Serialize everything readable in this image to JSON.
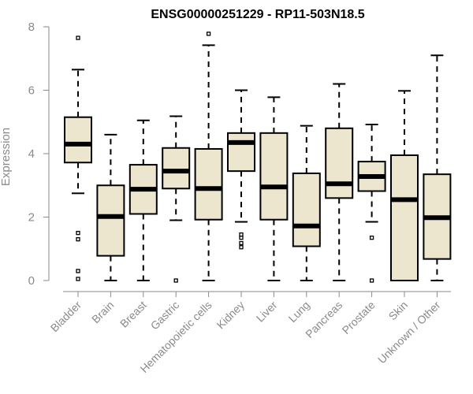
{
  "chart_data": {
    "type": "boxplot",
    "title": "ENSG00000251229 - RP11-503N18.5",
    "xlabel": "",
    "ylabel": "Expression",
    "ylim": [
      0,
      8
    ],
    "yticks": [
      0,
      2,
      4,
      6,
      8
    ],
    "grid": false,
    "categories": [
      "Bladder",
      "Brain",
      "Breast",
      "Gastric",
      "Hematopoietic cells",
      "Kidney",
      "Liver",
      "Lung",
      "Pancreas",
      "Prostate",
      "Skin",
      "Unknown / Other"
    ],
    "boxes": [
      {
        "name": "Bladder",
        "min": 2.75,
        "q1": 3.72,
        "median": 4.3,
        "q3": 5.15,
        "max": 6.65,
        "outliers": [
          7.65,
          1.5,
          1.3,
          0.3,
          0.05
        ]
      },
      {
        "name": "Brain",
        "min": 0.0,
        "q1": 0.78,
        "median": 2.02,
        "q3": 3.0,
        "max": 4.6,
        "outliers": []
      },
      {
        "name": "Breast",
        "min": 0.0,
        "q1": 2.1,
        "median": 2.88,
        "q3": 3.65,
        "max": 5.05,
        "outliers": []
      },
      {
        "name": "Gastric",
        "min": 1.9,
        "q1": 2.9,
        "median": 3.45,
        "q3": 4.18,
        "max": 5.18,
        "outliers": [
          0.0
        ]
      },
      {
        "name": "Hematopoietic cells",
        "min": 0.0,
        "q1": 1.92,
        "median": 2.9,
        "q3": 4.15,
        "max": 7.42,
        "outliers": [
          7.78
        ]
      },
      {
        "name": "Kidney",
        "min": 1.85,
        "q1": 3.45,
        "median": 4.35,
        "q3": 4.65,
        "max": 6.0,
        "outliers": [
          1.45,
          1.35,
          1.18,
          1.05
        ]
      },
      {
        "name": "Liver",
        "min": 0.0,
        "q1": 1.92,
        "median": 2.95,
        "q3": 4.65,
        "max": 5.78,
        "outliers": []
      },
      {
        "name": "Lung",
        "min": 0.0,
        "q1": 1.08,
        "median": 1.72,
        "q3": 3.38,
        "max": 4.88,
        "outliers": []
      },
      {
        "name": "Pancreas",
        "min": 0.0,
        "q1": 2.6,
        "median": 3.05,
        "q3": 4.8,
        "max": 6.2,
        "outliers": []
      },
      {
        "name": "Prostate",
        "min": 1.85,
        "q1": 2.82,
        "median": 3.28,
        "q3": 3.75,
        "max": 4.92,
        "outliers": [
          1.35,
          0.0
        ]
      },
      {
        "name": "Skin",
        "min": 0.0,
        "q1": 0.0,
        "median": 2.55,
        "q3": 3.95,
        "max": 5.98,
        "outliers": []
      },
      {
        "name": "Unknown / Other",
        "min": 0.0,
        "q1": 0.68,
        "median": 1.98,
        "q3": 3.35,
        "max": 7.1,
        "outliers": []
      }
    ]
  }
}
